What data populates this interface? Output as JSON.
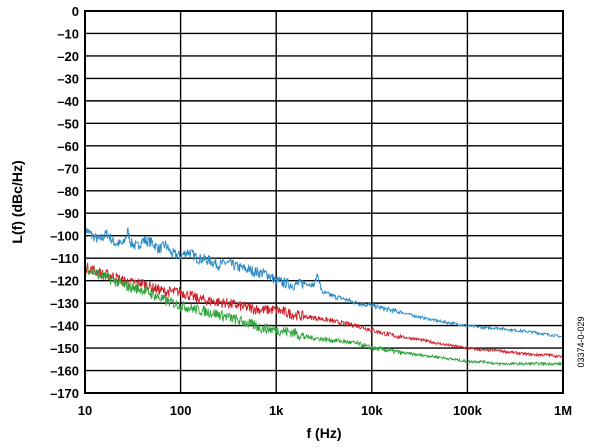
{
  "chart_data": {
    "type": "line",
    "title": "",
    "xlabel": "f (Hz)",
    "ylabel": "L(f) (dBc/Hz)",
    "x_scale": "log",
    "xlim": [
      10,
      1000000
    ],
    "ylim": [
      -170,
      0
    ],
    "grid": true,
    "legend": "none",
    "figure_id": "03374-0-029",
    "x_ticks": [
      {
        "value": 10,
        "label": "10"
      },
      {
        "value": 100,
        "label": "100"
      },
      {
        "value": 1000,
        "label": "1k"
      },
      {
        "value": 10000,
        "label": "10k"
      },
      {
        "value": 100000,
        "label": "100k"
      },
      {
        "value": 1000000,
        "label": "1M"
      }
    ],
    "y_ticks": [
      {
        "value": 0,
        "label": "0"
      },
      {
        "value": -10,
        "label": "–10"
      },
      {
        "value": -20,
        "label": "–20"
      },
      {
        "value": -30,
        "label": "–30"
      },
      {
        "value": -40,
        "label": "–40"
      },
      {
        "value": -50,
        "label": "–50"
      },
      {
        "value": -60,
        "label": "–60"
      },
      {
        "value": -70,
        "label": "–70"
      },
      {
        "value": -80,
        "label": "–80"
      },
      {
        "value": -90,
        "label": "–90"
      },
      {
        "value": -100,
        "label": "–100"
      },
      {
        "value": -110,
        "label": "–110"
      },
      {
        "value": -120,
        "label": "–120"
      },
      {
        "value": -130,
        "label": "–130"
      },
      {
        "value": -140,
        "label": "–140"
      },
      {
        "value": -150,
        "label": "–150"
      },
      {
        "value": -160,
        "label": "–160"
      },
      {
        "value": -170,
        "label": "–170"
      }
    ],
    "series": [
      {
        "color": "#2a8ac4",
        "x": [
          10,
          12,
          14,
          17,
          20,
          25,
          28,
          30,
          35,
          40,
          50,
          60,
          70,
          80,
          100,
          120,
          150,
          200,
          250,
          300,
          400,
          500,
          600,
          800,
          1000,
          1200,
          1500,
          2000,
          2500,
          2700,
          3000,
          4000,
          5000,
          7000,
          10000,
          15000,
          20000,
          30000,
          50000,
          70000,
          100000,
          150000,
          200000,
          300000,
          500000,
          700000,
          1000000
        ],
        "y": [
          -97,
          -100,
          -102,
          -99,
          -103,
          -104,
          -98,
          -103,
          -105,
          -102,
          -103,
          -106,
          -104,
          -108,
          -109,
          -107,
          -110,
          -111,
          -113,
          -112,
          -114,
          -115,
          -116,
          -117,
          -120,
          -121,
          -122,
          -121,
          -122,
          -117,
          -125,
          -127,
          -128,
          -130,
          -131,
          -133,
          -134,
          -136,
          -138,
          -139,
          -140,
          -141,
          -141,
          -142,
          -143,
          -144,
          -145
        ]
      },
      {
        "color": "#d0202a",
        "x": [
          10,
          12,
          15,
          20,
          25,
          30,
          40,
          50,
          70,
          100,
          150,
          200,
          300,
          500,
          700,
          1000,
          1500,
          2000,
          3000,
          5000,
          7000,
          10000,
          15000,
          20000,
          30000,
          50000,
          70000,
          100000,
          150000,
          200000,
          300000,
          500000,
          700000,
          1000000
        ],
        "y": [
          -114,
          -115,
          -117,
          -118,
          -120,
          -121,
          -121,
          -123,
          -125,
          -125,
          -128,
          -129,
          -130,
          -132,
          -133,
          -133,
          -135,
          -136,
          -137,
          -139,
          -140,
          -142,
          -144,
          -145,
          -146,
          -148,
          -149,
          -150,
          -151,
          -151,
          -152,
          -153,
          -153,
          -154
        ]
      },
      {
        "color": "#2ea43a",
        "x": [
          10,
          12,
          15,
          20,
          25,
          30,
          40,
          50,
          70,
          100,
          150,
          200,
          300,
          500,
          700,
          1000,
          1500,
          2000,
          3000,
          5000,
          7000,
          10000,
          15000,
          20000,
          30000,
          50000,
          70000,
          100000,
          150000,
          200000,
          300000,
          500000,
          700000,
          1000000
        ],
        "y": [
          -114,
          -116,
          -118,
          -120,
          -122,
          -123,
          -124,
          -126,
          -129,
          -131,
          -133,
          -134,
          -136,
          -139,
          -141,
          -142,
          -143,
          -145,
          -146,
          -147,
          -148,
          -150,
          -151,
          -152,
          -153,
          -154,
          -155,
          -156,
          -156,
          -157,
          -157,
          -157,
          -157,
          -157
        ]
      }
    ]
  }
}
